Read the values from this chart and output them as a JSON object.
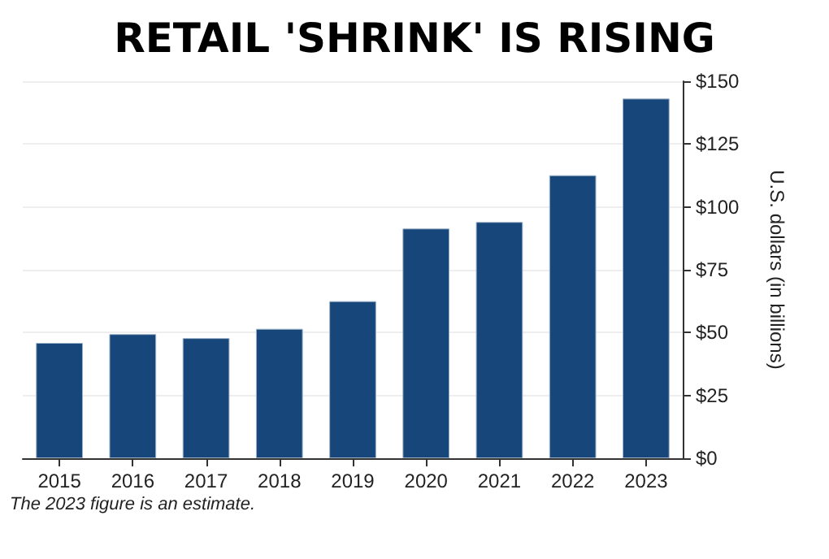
{
  "chart_data": {
    "type": "bar",
    "title": "RETAIL 'SHRINK' IS RISING",
    "y2label": "U.S. dollars (in billions)",
    "categories": [
      "2015",
      "2016",
      "2017",
      "2018",
      "2019",
      "2020",
      "2021",
      "2022",
      "2023"
    ],
    "series": [
      {
        "color": "#16467a",
        "axis": "y2",
        "values": [
          45.9,
          49.4,
          47.8,
          51.5,
          62.5,
          91.4,
          94.0,
          112.6,
          143.1
        ]
      }
    ],
    "y2lim": [
      0,
      150
    ],
    "y2ticks": [
      {
        "value": 0,
        "label": "$0"
      },
      {
        "value": 25,
        "label": "$25"
      },
      {
        "value": 50,
        "label": "$50"
      },
      {
        "value": 75,
        "label": "$75"
      },
      {
        "value": 100,
        "label": "$100"
      },
      {
        "value": 125,
        "label": "$125"
      },
      {
        "value": 150,
        "label": "$150"
      }
    ],
    "grid": "y",
    "annotations": [
      "The 2023 figure is an estimate."
    ]
  }
}
